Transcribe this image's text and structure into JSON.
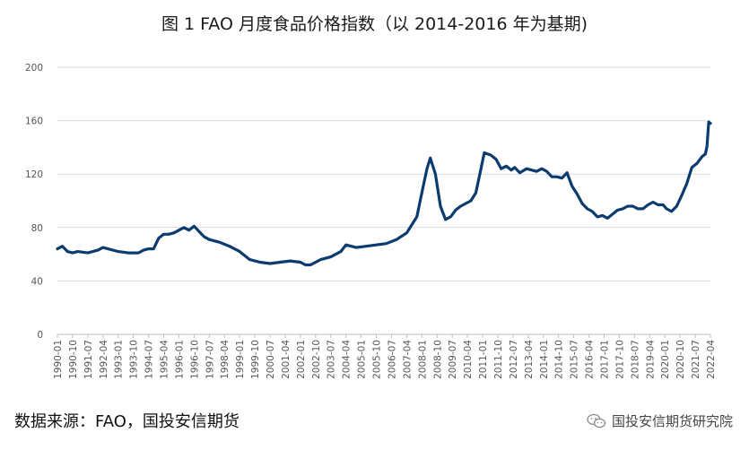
{
  "title": "图 1 FAO 月度食品价格指数（以 2014-2016 年为基期)",
  "footer": {
    "source": "数据来源：FAO，国投安信期货",
    "brand": "国投安信期货研究院",
    "brand_icon": "wechat-icon"
  },
  "colors": {
    "line": "#0b3b6f",
    "grid": "#d9d9d9",
    "axis": "#bfbfbf"
  },
  "chart_data": {
    "type": "line",
    "title": "图 1 FAO 月度食品价格指数（以 2014-2016 年为基期)",
    "xlabel": "",
    "ylabel": "",
    "ylim": [
      0,
      200
    ],
    "yticks": [
      0,
      40,
      80,
      120,
      160,
      200
    ],
    "xlim": [
      "1990-01",
      "2022-04"
    ],
    "grid": true,
    "legend": "none",
    "x_tick_labels": [
      "1990-01",
      "1990-10",
      "1991-07",
      "1992-04",
      "1993-01",
      "1993-10",
      "1994-07",
      "1995-04",
      "1996-01",
      "1996-10",
      "1997-07",
      "1998-04",
      "1999-01",
      "1999-10",
      "2000-07",
      "2001-04",
      "2002-01",
      "2002-10",
      "2003-07",
      "2004-04",
      "2005-01",
      "2005-10",
      "2006-07",
      "2007-04",
      "2008-01",
      "2008-10",
      "2009-07",
      "2010-04",
      "2011-01",
      "2011-10",
      "2012-07",
      "2013-04",
      "2014-01",
      "2014-10",
      "2015-07",
      "2016-04",
      "2017-01",
      "2017-10",
      "2018-07",
      "2019-04",
      "2020-01",
      "2020-10",
      "2021-07",
      "2022-04"
    ],
    "series": [
      {
        "color": "#0b3b6f",
        "x": [
          "1990-01",
          "1990-04",
          "1990-07",
          "1990-10",
          "1991-01",
          "1991-07",
          "1992-01",
          "1992-04",
          "1992-07",
          "1993-01",
          "1993-07",
          "1994-01",
          "1994-04",
          "1994-07",
          "1994-10",
          "1995-01",
          "1995-04",
          "1995-07",
          "1995-10",
          "1996-01",
          "1996-04",
          "1996-07",
          "1996-10",
          "1997-01",
          "1997-04",
          "1997-07",
          "1997-10",
          "1998-01",
          "1998-07",
          "1999-01",
          "1999-07",
          "2000-01",
          "2000-07",
          "2001-01",
          "2001-07",
          "2002-01",
          "2002-04",
          "2002-07",
          "2003-01",
          "2003-07",
          "2004-01",
          "2004-04",
          "2004-10",
          "2005-04",
          "2005-10",
          "2006-04",
          "2006-10",
          "2007-04",
          "2007-10",
          "2008-01",
          "2008-04",
          "2008-06",
          "2008-09",
          "2008-12",
          "2009-03",
          "2009-06",
          "2009-09",
          "2009-12",
          "2010-03",
          "2010-06",
          "2010-09",
          "2010-12",
          "2011-02",
          "2011-06",
          "2011-09",
          "2011-12",
          "2012-03",
          "2012-06",
          "2012-08",
          "2012-11",
          "2013-03",
          "2013-06",
          "2013-09",
          "2013-12",
          "2014-03",
          "2014-06",
          "2014-09",
          "2014-12",
          "2015-03",
          "2015-06",
          "2015-09",
          "2015-12",
          "2016-03",
          "2016-06",
          "2016-09",
          "2016-12",
          "2017-03",
          "2017-06",
          "2017-09",
          "2017-12",
          "2018-03",
          "2018-06",
          "2018-09",
          "2018-12",
          "2019-03",
          "2019-06",
          "2019-09",
          "2019-12",
          "2020-02",
          "2020-05",
          "2020-08",
          "2020-11",
          "2021-02",
          "2021-05",
          "2021-08",
          "2021-11",
          "2022-01",
          "2022-02",
          "2022-03",
          "2022-04"
        ],
        "y": [
          64,
          66,
          62,
          61,
          62,
          61,
          63,
          65,
          64,
          62,
          61,
          61,
          63,
          64,
          64,
          72,
          75,
          75,
          76,
          78,
          80,
          78,
          81,
          77,
          73,
          71,
          70,
          69,
          66,
          62,
          56,
          54,
          53,
          54,
          55,
          54,
          52,
          52,
          56,
          58,
          62,
          67,
          65,
          66,
          67,
          68,
          71,
          76,
          88,
          106,
          124,
          132,
          120,
          96,
          86,
          88,
          93,
          96,
          98,
          100,
          106,
          124,
          136,
          134,
          131,
          124,
          126,
          123,
          125,
          121,
          124,
          123,
          122,
          124,
          122,
          118,
          118,
          117,
          121,
          111,
          105,
          98,
          94,
          92,
          88,
          89,
          87,
          90,
          93,
          94,
          96,
          96,
          94,
          94,
          97,
          99,
          97,
          97,
          94,
          92,
          96,
          104,
          113,
          125,
          128,
          133,
          135,
          141,
          159,
          158
        ]
      }
    ]
  }
}
